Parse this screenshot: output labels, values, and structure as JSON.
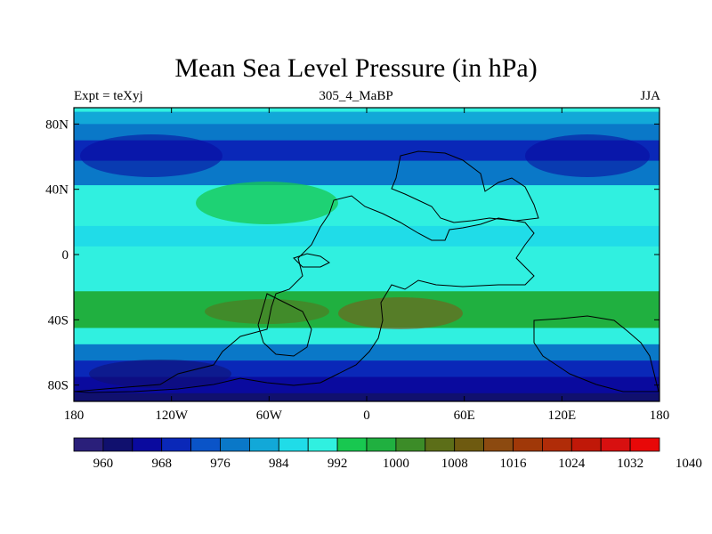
{
  "title": "Mean Sea Level Pressure (in hPa)",
  "left_label": "Expt = teXyj",
  "center_label": "305_4_MaBP",
  "right_label": "JJA",
  "chart_data": {
    "type": "heatmap",
    "variable": "Mean Sea Level Pressure",
    "units": "hPa",
    "xlim": [
      -180,
      180
    ],
    "ylim": [
      -90,
      90
    ],
    "x_ticks": [
      {
        "value": -180,
        "label": "180"
      },
      {
        "value": -120,
        "label": "120W"
      },
      {
        "value": -60,
        "label": "60W"
      },
      {
        "value": 0,
        "label": "0"
      },
      {
        "value": 60,
        "label": "60E"
      },
      {
        "value": 120,
        "label": "120E"
      },
      {
        "value": 180,
        "label": "180"
      }
    ],
    "y_ticks": [
      {
        "value": 80,
        "label": "80N"
      },
      {
        "value": 40,
        "label": "40N"
      },
      {
        "value": 0,
        "label": "0"
      },
      {
        "value": -40,
        "label": "40S"
      },
      {
        "value": -80,
        "label": "80S"
      }
    ],
    "colorbar": {
      "colors": [
        "#2a1f7a",
        "#10106e",
        "#0a0a9e",
        "#0a28b8",
        "#0a54c8",
        "#0a78c8",
        "#12a8d8",
        "#20dce8",
        "#30f0e0",
        "#18c850",
        "#20b040",
        "#3c8c28",
        "#5c6e18",
        "#6e5a10",
        "#8c4a10",
        "#a03808",
        "#b02c08",
        "#c01808",
        "#d81010",
        "#e80808"
      ],
      "labels": [
        "960",
        "968",
        "976",
        "984",
        "992",
        "1000",
        "1008",
        "1016",
        "1024",
        "1032",
        "1040"
      ]
    },
    "latitude_profile": [
      {
        "lat": 90,
        "level": 8
      },
      {
        "lat": 85,
        "level": 6
      },
      {
        "lat": 75,
        "level": 5
      },
      {
        "lat": 65,
        "level": 3
      },
      {
        "lat": 50,
        "level": 5
      },
      {
        "lat": 35,
        "level": 8
      },
      {
        "lat": 25,
        "level": 8
      },
      {
        "lat": 10,
        "level": 7
      },
      {
        "lat": 0,
        "level": 8
      },
      {
        "lat": -15,
        "level": 8
      },
      {
        "lat": -30,
        "level": 10
      },
      {
        "lat": -40,
        "level": 10
      },
      {
        "lat": -50,
        "level": 8
      },
      {
        "lat": -60,
        "level": 5
      },
      {
        "lat": -70,
        "level": 3
      },
      {
        "lat": -80,
        "level": 2
      },
      {
        "lat": -90,
        "level": 1
      }
    ]
  }
}
